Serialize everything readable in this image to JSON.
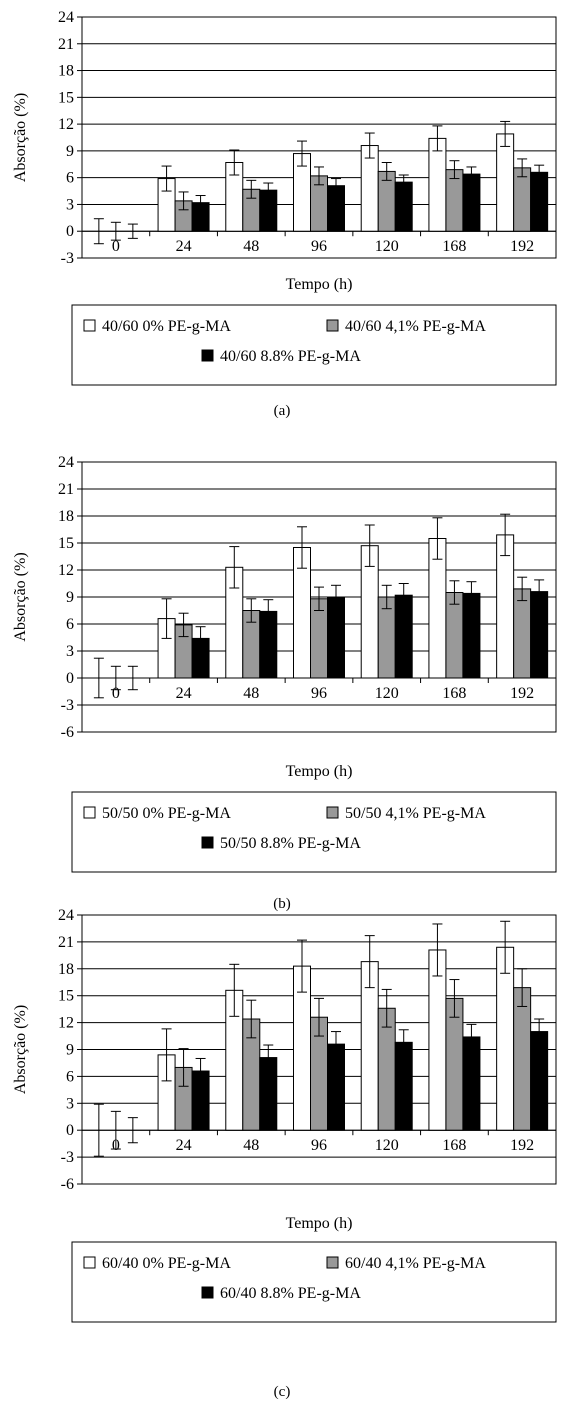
{
  "chart_data": [
    {
      "type": "bar",
      "panel_label": "(a)",
      "xlabel": "Tempo (h)",
      "ylabel": "Absorção (%)",
      "ylim": [
        -3,
        24
      ],
      "yticks": [
        "24",
        "21",
        "18",
        "15",
        "12",
        "9",
        "6",
        "3",
        "0",
        "-3"
      ],
      "categories": [
        "0",
        "24",
        "48",
        "96",
        "120",
        "168",
        "192"
      ],
      "grid": true,
      "legend_position": "bottom",
      "series": [
        {
          "name": "40/60 0% PE-g-MA",
          "color": "#ffffff",
          "values": [
            0,
            5.9,
            7.7,
            8.7,
            9.6,
            10.4,
            10.9
          ],
          "errors": [
            1.4,
            1.4,
            1.4,
            1.4,
            1.4,
            1.4,
            1.4
          ]
        },
        {
          "name": "40/60 4,1% PE-g-MA",
          "color": "#999999",
          "values": [
            0,
            3.4,
            4.7,
            6.2,
            6.7,
            6.9,
            7.1
          ],
          "errors": [
            1.0,
            1.0,
            1.0,
            1.0,
            1.0,
            1.0,
            1.0
          ]
        },
        {
          "name": "40/60 8.8% PE-g-MA",
          "color": "#000000",
          "values": [
            0,
            3.2,
            4.6,
            5.1,
            5.5,
            6.4,
            6.6
          ],
          "errors": [
            0.8,
            0.8,
            0.8,
            0.8,
            0.8,
            0.8,
            0.8
          ]
        }
      ]
    },
    {
      "type": "bar",
      "panel_label": "(b)",
      "xlabel": "Tempo (h)",
      "ylabel": "Absorção (%)",
      "ylim": [
        -6,
        24
      ],
      "yticks": [
        "24",
        "21",
        "18",
        "15",
        "12",
        "9",
        "6",
        "3",
        "0",
        "-3",
        "-6"
      ],
      "categories": [
        "0",
        "24",
        "48",
        "96",
        "120",
        "168",
        "192"
      ],
      "grid": true,
      "legend_position": "bottom",
      "series": [
        {
          "name": "50/50 0% PE-g-MA",
          "color": "#ffffff",
          "values": [
            0,
            6.6,
            12.3,
            14.5,
            14.7,
            15.5,
            15.9
          ],
          "errors": [
            2.2,
            2.2,
            2.3,
            2.3,
            2.3,
            2.3,
            2.3
          ]
        },
        {
          "name": "50/50 4,1% PE-g-MA",
          "color": "#999999",
          "values": [
            0,
            5.9,
            7.5,
            8.8,
            9.0,
            9.5,
            9.9
          ],
          "errors": [
            1.3,
            1.3,
            1.3,
            1.3,
            1.3,
            1.3,
            1.3
          ]
        },
        {
          "name": "50/50 8.8% PE-g-MA",
          "color": "#000000",
          "values": [
            0,
            4.4,
            7.4,
            9.0,
            9.2,
            9.4,
            9.6
          ],
          "errors": [
            1.3,
            1.3,
            1.3,
            1.3,
            1.3,
            1.3,
            1.3
          ]
        }
      ]
    },
    {
      "type": "bar",
      "panel_label": "(c)",
      "xlabel": "Tempo (h)",
      "ylabel": "Absorção (%)",
      "ylim": [
        -6,
        24
      ],
      "yticks": [
        "24",
        "21",
        "18",
        "15",
        "12",
        "9",
        "6",
        "3",
        "0",
        "-3",
        "-6"
      ],
      "categories": [
        "0",
        "24",
        "48",
        "96",
        "120",
        "168",
        "192"
      ],
      "grid": true,
      "legend_position": "bottom",
      "series": [
        {
          "name": "60/40 0% PE-g-MA",
          "color": "#ffffff",
          "values": [
            0,
            8.4,
            15.6,
            18.3,
            18.8,
            20.1,
            20.4
          ],
          "errors": [
            2.9,
            2.9,
            2.9,
            2.9,
            2.9,
            2.9,
            2.9
          ]
        },
        {
          "name": "60/40 4,1% PE-g-MA",
          "color": "#999999",
          "values": [
            0,
            7.0,
            12.4,
            12.6,
            13.6,
            14.7,
            15.9
          ],
          "errors": [
            2.1,
            2.1,
            2.1,
            2.1,
            2.1,
            2.1,
            2.1
          ]
        },
        {
          "name": "60/40 8.8% PE-g-MA",
          "color": "#000000",
          "values": [
            0,
            6.6,
            8.1,
            9.6,
            9.8,
            10.4,
            11.0
          ],
          "errors": [
            1.4,
            1.4,
            1.4,
            1.4,
            1.4,
            1.4,
            1.4
          ]
        }
      ]
    }
  ]
}
